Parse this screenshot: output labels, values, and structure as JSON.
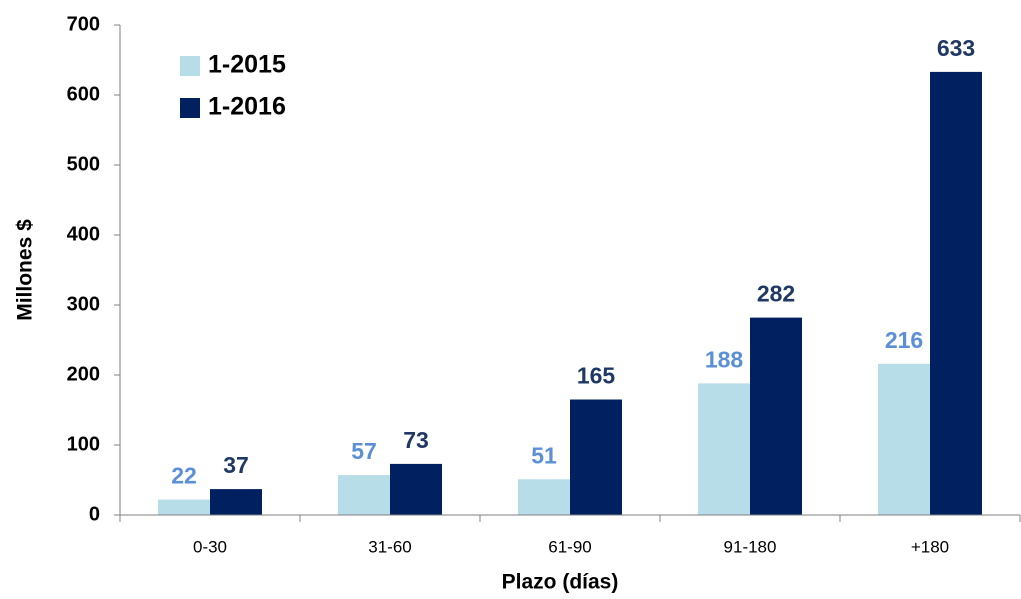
{
  "chart_data": {
    "type": "bar",
    "x_label": "Plazo (días)",
    "y_label": "Millones $",
    "categories": [
      "0-30",
      "31-60",
      "61-90",
      "91-180",
      "+180"
    ],
    "series": [
      {
        "name": "1-2015",
        "color": "#b7dde8",
        "label_color": "#5b8fd6",
        "values": [
          22,
          57,
          51,
          188,
          216
        ]
      },
      {
        "name": "1-2016",
        "color": "#002060",
        "label_color": "#1f3864",
        "values": [
          37,
          73,
          165,
          282,
          633
        ]
      }
    ],
    "ylim": [
      0,
      700
    ],
    "yticks": [
      0,
      100,
      200,
      300,
      400,
      500,
      600,
      700
    ],
    "grid": false,
    "legend": "upper left"
  }
}
